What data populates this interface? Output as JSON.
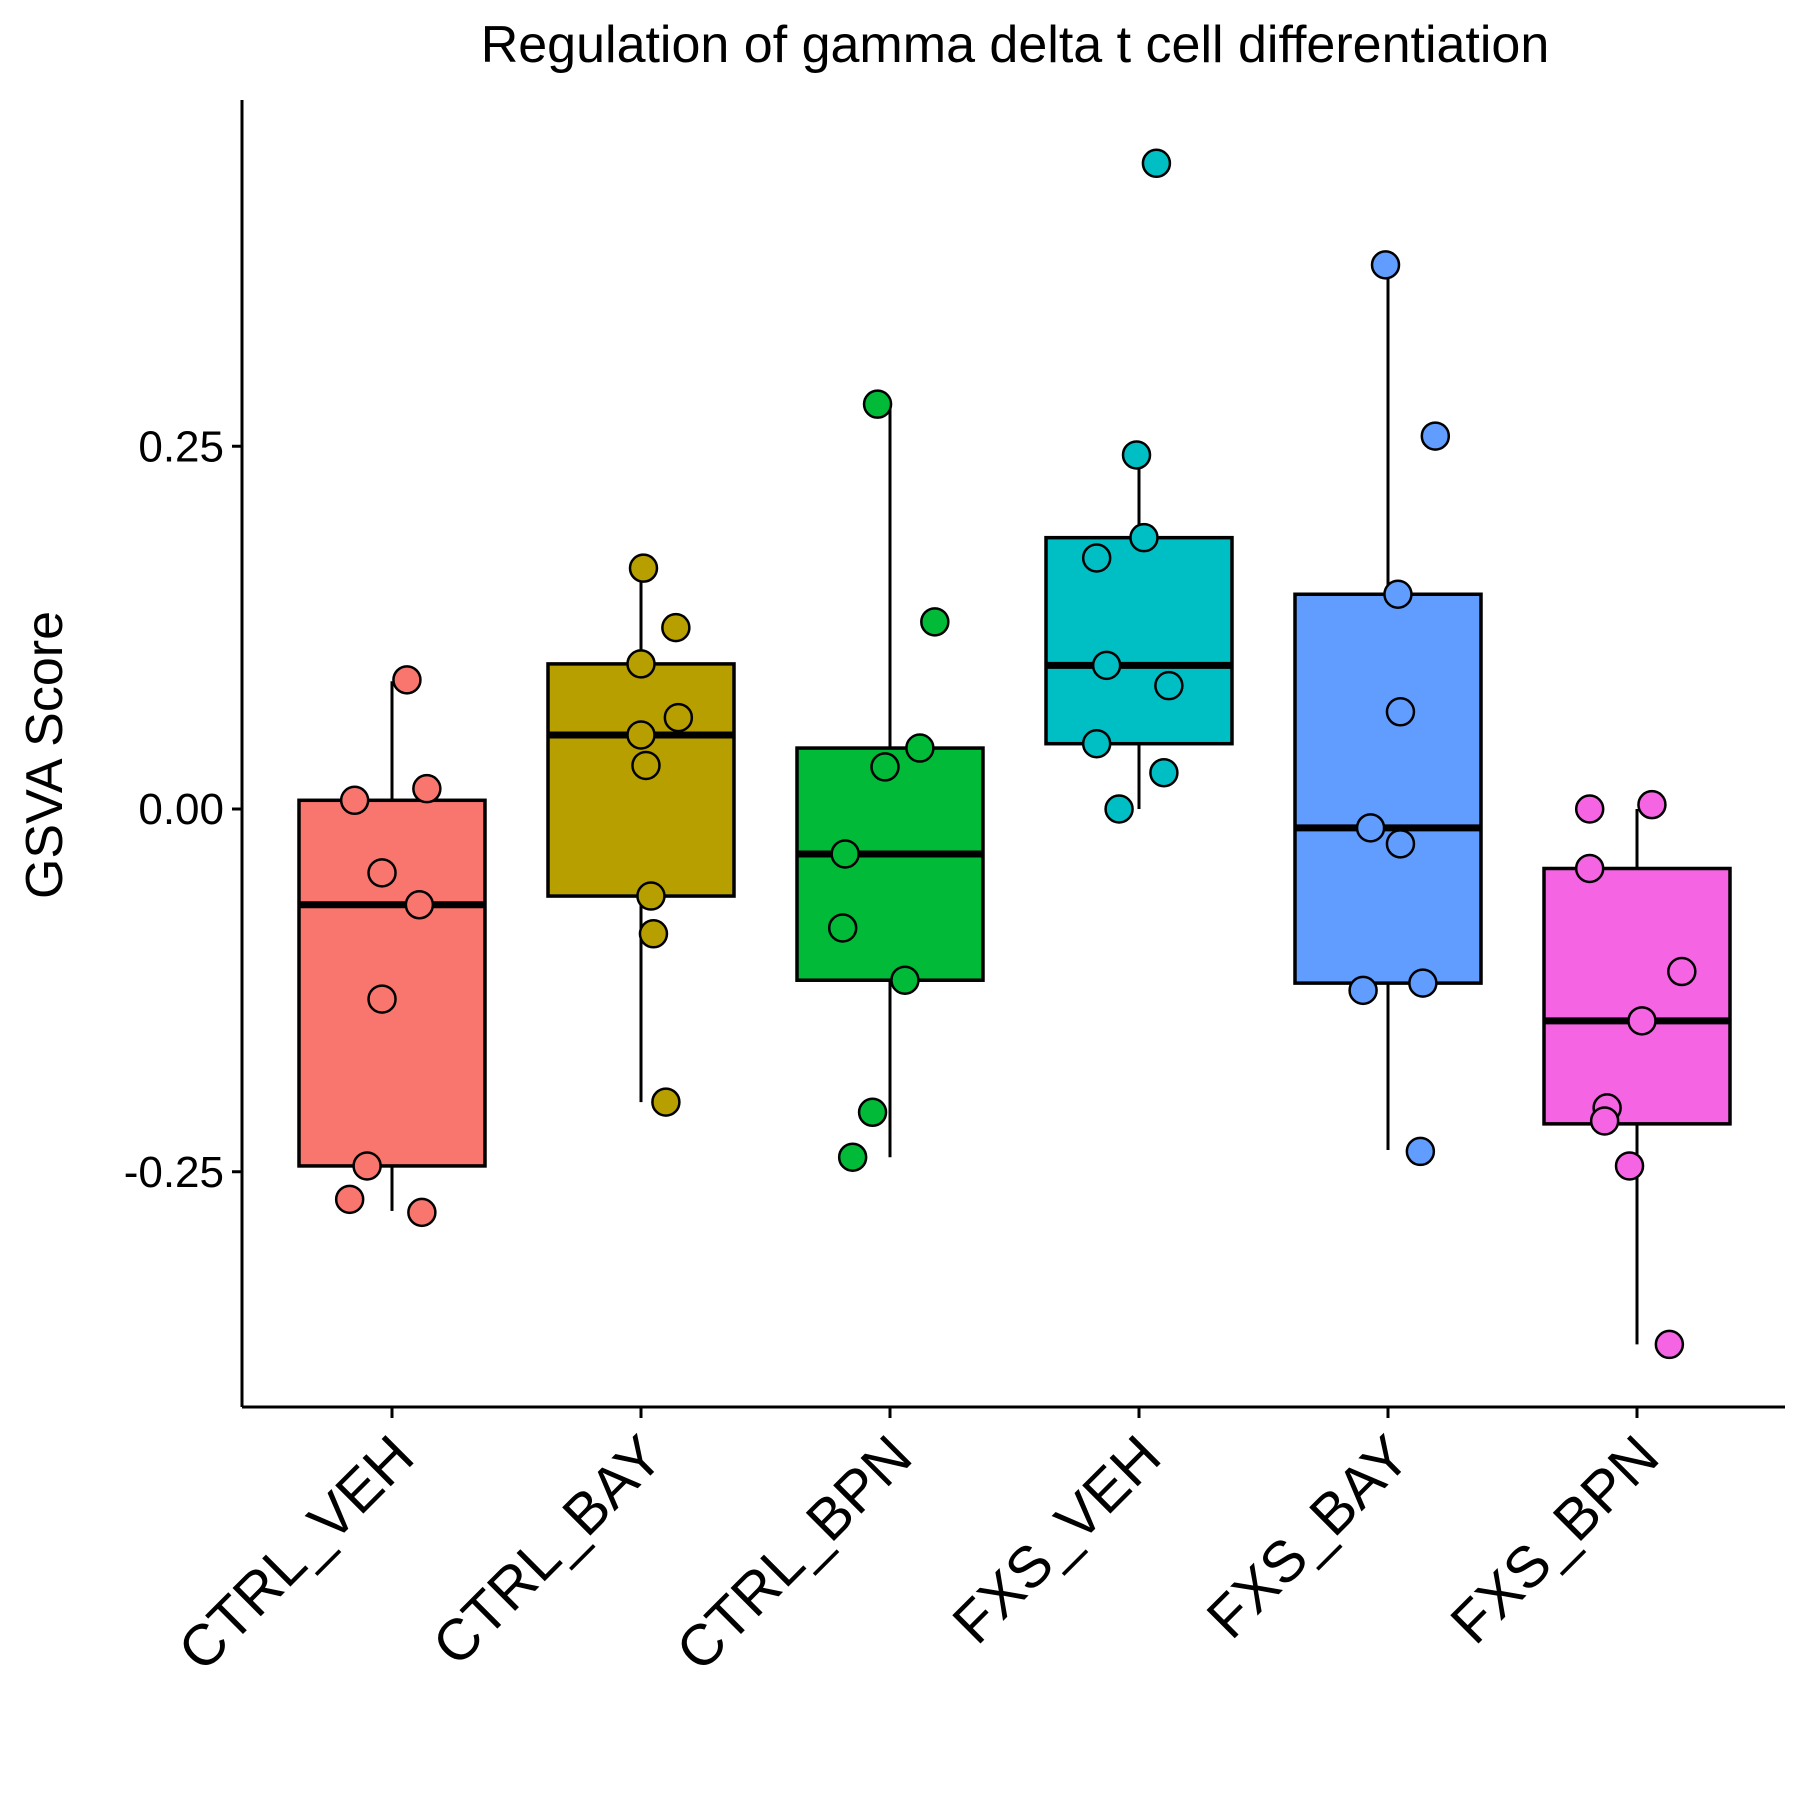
{
  "chart_data": {
    "type": "box",
    "title": "Regulation of gamma delta t cell differentiation",
    "xlabel": "",
    "ylabel": "GSVA Score",
    "ylim": [
      -0.4,
      0.49
    ],
    "yticks": [
      -0.25,
      0.0,
      0.25
    ],
    "ytick_labels": [
      "-0.25",
      "0.00",
      "0.25"
    ],
    "categories": [
      "CTRL_VEH",
      "CTRL_BAY",
      "CTRL_BPN",
      "FXS_VEH",
      "FXS_BAY",
      "FXS_BPN"
    ],
    "legend": "none",
    "grid": false,
    "groups": [
      {
        "name": "CTRL_VEH",
        "color": "#F8766D",
        "box": {
          "whisker_low": -0.277,
          "q1": -0.246,
          "median": -0.066,
          "q3": 0.006,
          "whisker_high": 0.088
        },
        "points": [
          {
            "jitter": 0.06,
            "y": 0.089
          },
          {
            "jitter": 0.14,
            "y": 0.014
          },
          {
            "jitter": -0.15,
            "y": 0.006
          },
          {
            "jitter": -0.04,
            "y": -0.044
          },
          {
            "jitter": 0.11,
            "y": -0.066
          },
          {
            "jitter": -0.04,
            "y": -0.131
          },
          {
            "jitter": -0.1,
            "y": -0.246
          },
          {
            "jitter": -0.17,
            "y": -0.269
          },
          {
            "jitter": 0.12,
            "y": -0.278
          }
        ]
      },
      {
        "name": "CTRL_BAY",
        "color": "#B79F00",
        "box": {
          "whisker_low": -0.202,
          "q1": -0.06,
          "median": 0.051,
          "q3": 0.1,
          "whisker_high": 0.166
        },
        "points": [
          {
            "jitter": 0.01,
            "y": 0.166
          },
          {
            "jitter": 0.14,
            "y": 0.125
          },
          {
            "jitter": 0.0,
            "y": 0.1
          },
          {
            "jitter": 0.15,
            "y": 0.063
          },
          {
            "jitter": 0.0,
            "y": 0.051
          },
          {
            "jitter": 0.02,
            "y": 0.03
          },
          {
            "jitter": 0.04,
            "y": -0.06
          },
          {
            "jitter": 0.05,
            "y": -0.086
          },
          {
            "jitter": 0.1,
            "y": -0.202
          }
        ]
      },
      {
        "name": "CTRL_BPN",
        "color": "#00BA38",
        "box": {
          "whisker_low": -0.24,
          "q1": -0.118,
          "median": -0.031,
          "q3": 0.042,
          "whisker_high": 0.279
        },
        "points": [
          {
            "jitter": -0.05,
            "y": 0.279
          },
          {
            "jitter": 0.18,
            "y": 0.129
          },
          {
            "jitter": 0.12,
            "y": 0.042
          },
          {
            "jitter": -0.02,
            "y": 0.029
          },
          {
            "jitter": -0.18,
            "y": -0.031
          },
          {
            "jitter": -0.19,
            "y": -0.082
          },
          {
            "jitter": 0.06,
            "y": -0.118
          },
          {
            "jitter": -0.07,
            "y": -0.209
          },
          {
            "jitter": -0.15,
            "y": -0.24
          }
        ]
      },
      {
        "name": "FXS_VEH",
        "color": "#00BFC4",
        "box": {
          "whisker_low": 0.0,
          "q1": 0.045,
          "median": 0.099,
          "q3": 0.187,
          "whisker_high": 0.244
        },
        "points": [
          {
            "jitter": 0.07,
            "y": 0.445
          },
          {
            "jitter": -0.01,
            "y": 0.244
          },
          {
            "jitter": 0.02,
            "y": 0.187
          },
          {
            "jitter": -0.17,
            "y": 0.173
          },
          {
            "jitter": -0.13,
            "y": 0.099
          },
          {
            "jitter": 0.12,
            "y": 0.085
          },
          {
            "jitter": -0.17,
            "y": 0.045
          },
          {
            "jitter": 0.1,
            "y": 0.025
          },
          {
            "jitter": -0.08,
            "y": 0.0
          }
        ]
      },
      {
        "name": "FXS_BAY",
        "color": "#619CFF",
        "box": {
          "whisker_low": -0.235,
          "q1": -0.12,
          "median": -0.013,
          "q3": 0.148,
          "whisker_high": 0.375
        },
        "points": [
          {
            "jitter": -0.01,
            "y": 0.375
          },
          {
            "jitter": 0.19,
            "y": 0.257
          },
          {
            "jitter": 0.04,
            "y": 0.148
          },
          {
            "jitter": 0.05,
            "y": 0.067
          },
          {
            "jitter": -0.07,
            "y": -0.013
          },
          {
            "jitter": 0.05,
            "y": -0.024
          },
          {
            "jitter": -0.1,
            "y": -0.125
          },
          {
            "jitter": 0.14,
            "y": -0.12
          },
          {
            "jitter": 0.13,
            "y": -0.236
          }
        ]
      },
      {
        "name": "FXS_BPN",
        "color": "#F564E3",
        "box": {
          "whisker_low": -0.369,
          "q1": -0.217,
          "median": -0.146,
          "q3": -0.041,
          "whisker_high": 0.0
        },
        "points": [
          {
            "jitter": -0.19,
            "y": 0.0
          },
          {
            "jitter": 0.06,
            "y": 0.003
          },
          {
            "jitter": -0.19,
            "y": -0.041
          },
          {
            "jitter": 0.18,
            "y": -0.112
          },
          {
            "jitter": 0.02,
            "y": -0.146
          },
          {
            "jitter": -0.12,
            "y": -0.206
          },
          {
            "jitter": -0.13,
            "y": -0.215
          },
          {
            "jitter": -0.03,
            "y": -0.246
          },
          {
            "jitter": 0.13,
            "y": -0.369
          }
        ]
      }
    ]
  }
}
